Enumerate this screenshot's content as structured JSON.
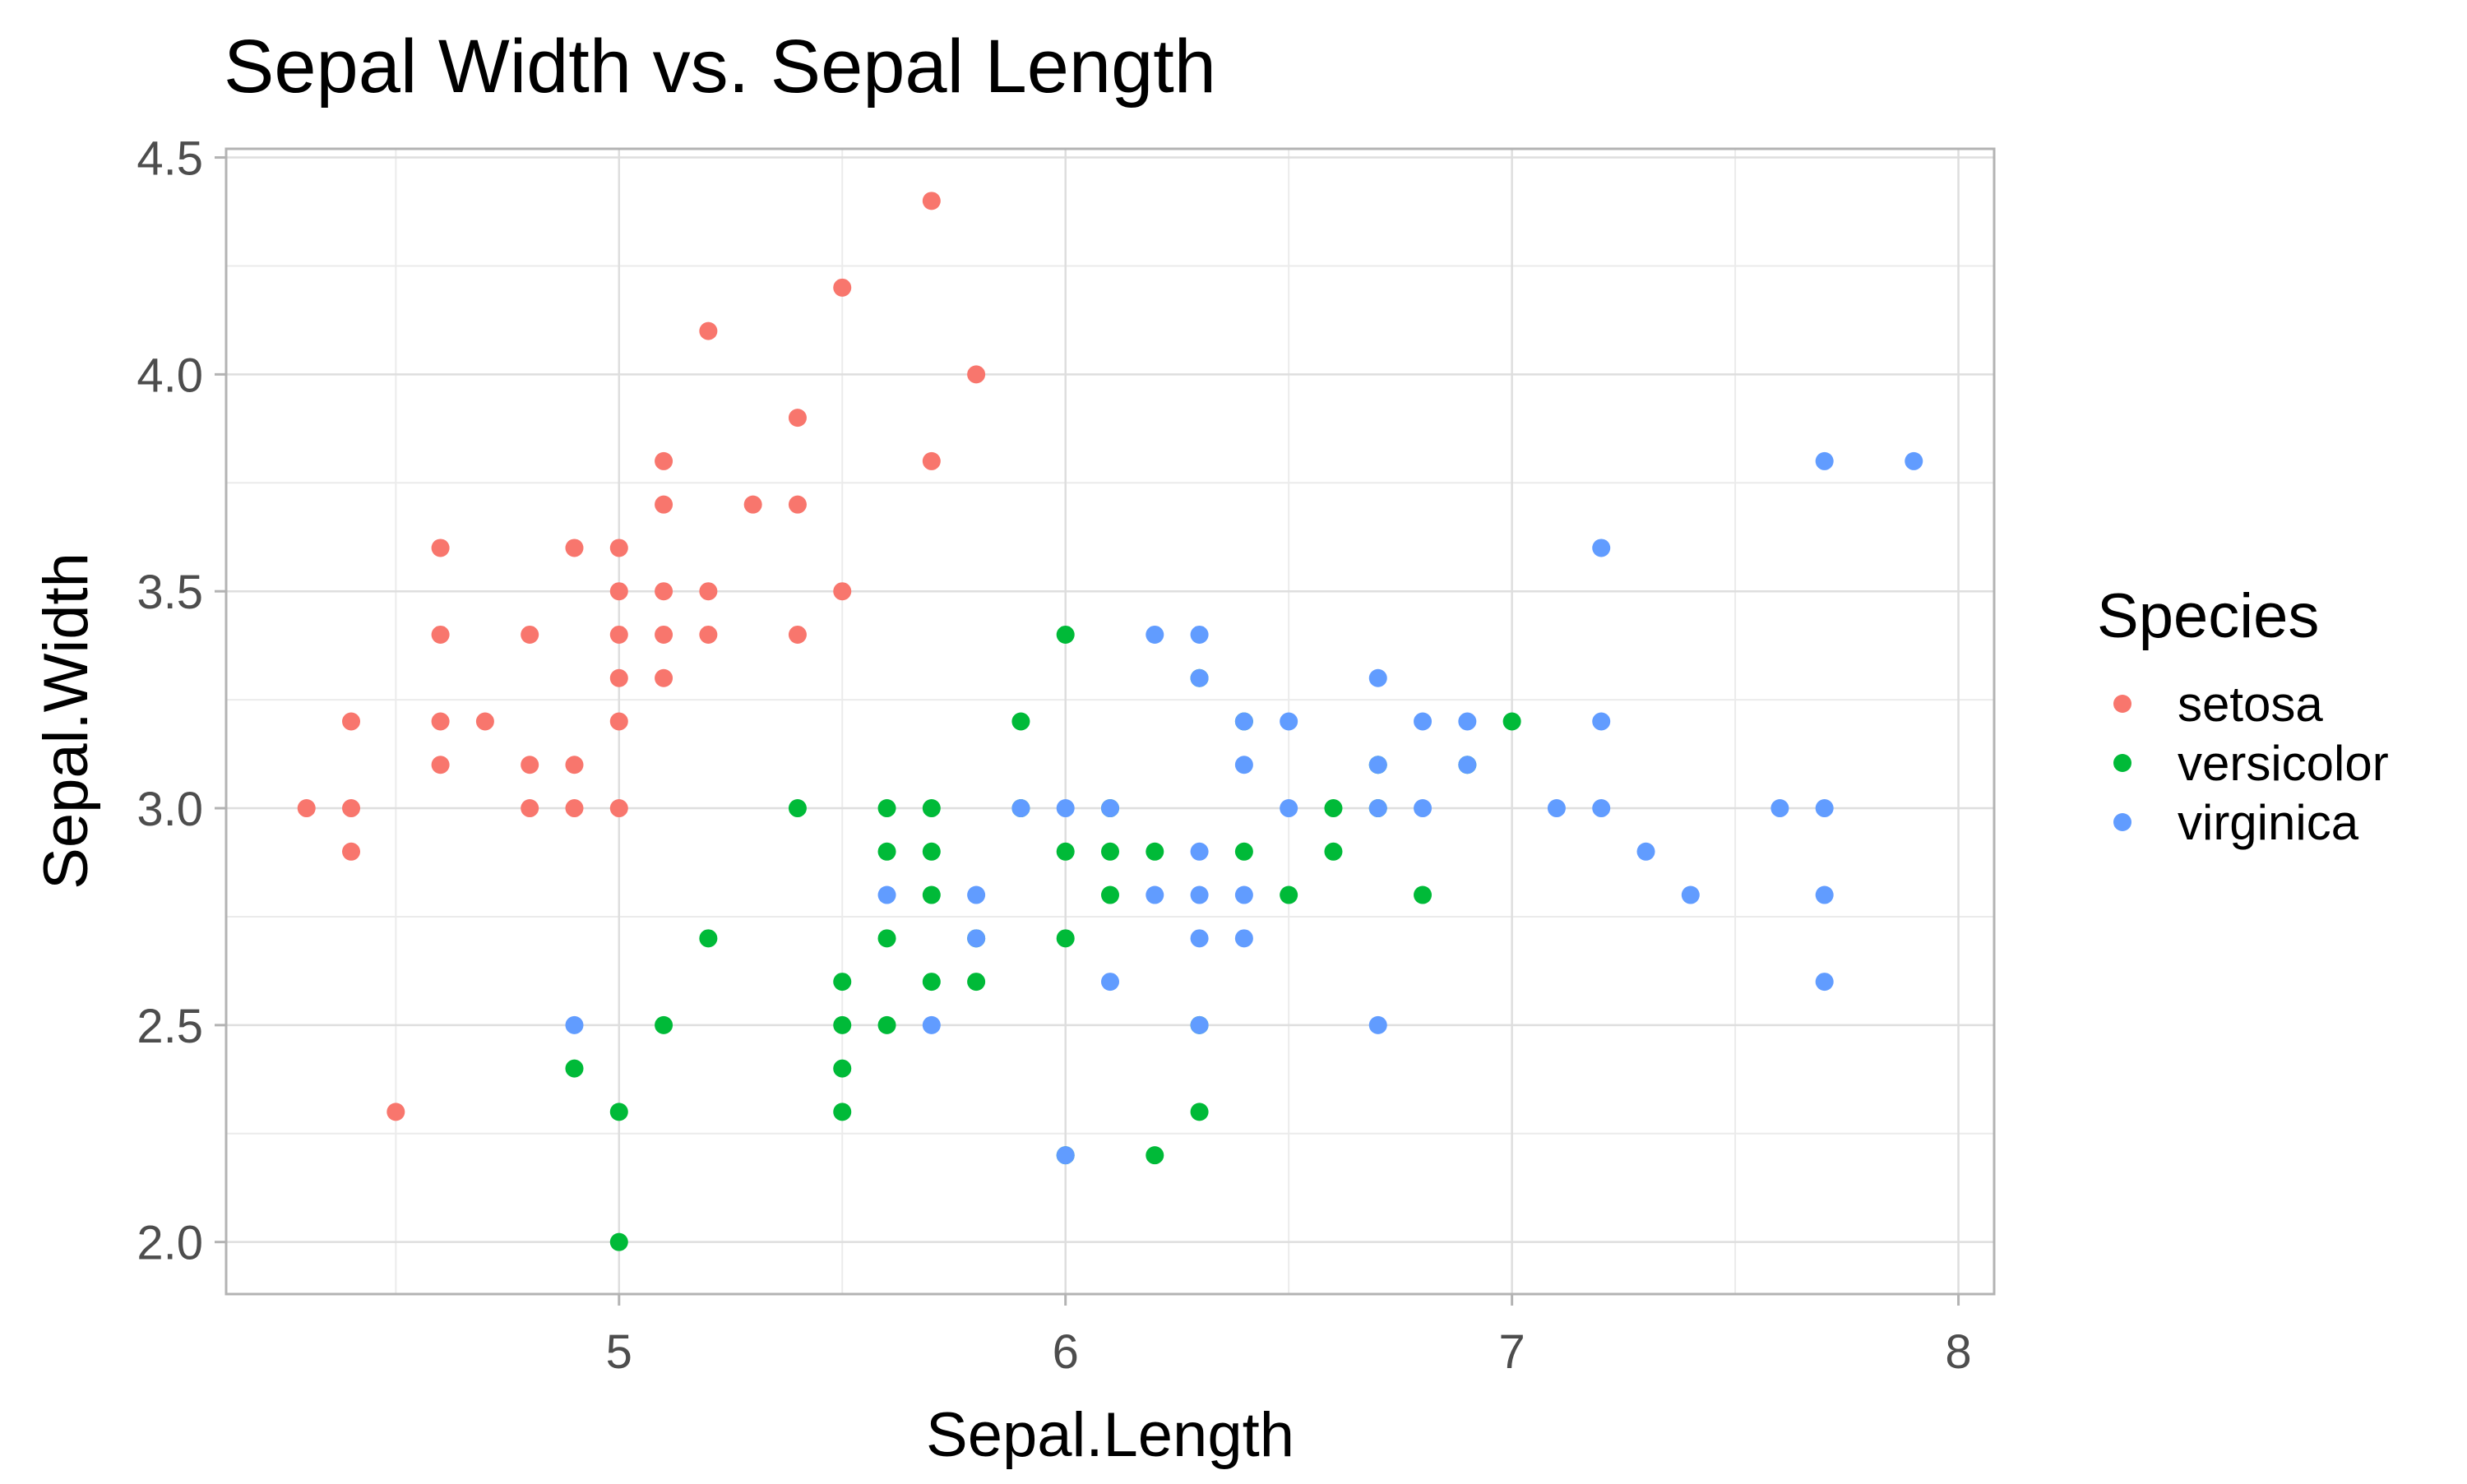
{
  "chart_data": {
    "type": "scatter",
    "title": "Sepal Width vs. Sepal Length",
    "xlabel": "Sepal.Length",
    "ylabel": "Sepal.Width",
    "xlim": [
      4.12,
      8.08
    ],
    "ylim": [
      1.88,
      4.52
    ],
    "x_ticks": [
      5,
      6,
      7,
      8
    ],
    "x_tick_labels": [
      "5",
      "6",
      "7",
      "8"
    ],
    "y_ticks": [
      2.0,
      2.5,
      3.0,
      3.5,
      4.0,
      4.5
    ],
    "y_tick_labels": [
      "2.0",
      "2.5",
      "3.0",
      "3.5",
      "4.0",
      "4.5"
    ],
    "grid": true,
    "legend": {
      "title": "Species",
      "position": "right"
    },
    "series": [
      {
        "name": "setosa",
        "color": "#F8766D",
        "points": [
          [
            4.3,
            3.0
          ],
          [
            4.4,
            2.9
          ],
          [
            4.4,
            3.0
          ],
          [
            4.4,
            3.2
          ],
          [
            4.5,
            2.3
          ],
          [
            4.6,
            3.1
          ],
          [
            4.6,
            3.2
          ],
          [
            4.6,
            3.4
          ],
          [
            4.6,
            3.6
          ],
          [
            4.7,
            3.2
          ],
          [
            4.8,
            3.0
          ],
          [
            4.8,
            3.1
          ],
          [
            4.8,
            3.4
          ],
          [
            4.9,
            3.0
          ],
          [
            4.9,
            3.1
          ],
          [
            4.9,
            3.6
          ],
          [
            5.0,
            3.0
          ],
          [
            5.0,
            3.2
          ],
          [
            5.0,
            3.3
          ],
          [
            5.0,
            3.4
          ],
          [
            5.0,
            3.5
          ],
          [
            5.0,
            3.6
          ],
          [
            5.1,
            3.3
          ],
          [
            5.1,
            3.4
          ],
          [
            5.1,
            3.5
          ],
          [
            5.1,
            3.7
          ],
          [
            5.1,
            3.8
          ],
          [
            5.2,
            3.4
          ],
          [
            5.2,
            3.5
          ],
          [
            5.2,
            4.1
          ],
          [
            5.3,
            3.7
          ],
          [
            5.4,
            3.4
          ],
          [
            5.4,
            3.7
          ],
          [
            5.4,
            3.9
          ],
          [
            5.5,
            3.5
          ],
          [
            5.5,
            4.2
          ],
          [
            5.7,
            3.8
          ],
          [
            5.7,
            4.4
          ],
          [
            5.8,
            4.0
          ]
        ]
      },
      {
        "name": "versicolor",
        "color": "#00BA38",
        "points": [
          [
            4.9,
            2.4
          ],
          [
            5.0,
            2.0
          ],
          [
            5.0,
            2.3
          ],
          [
            5.1,
            2.5
          ],
          [
            5.2,
            2.7
          ],
          [
            5.4,
            3.0
          ],
          [
            5.5,
            2.3
          ],
          [
            5.5,
            2.4
          ],
          [
            5.5,
            2.5
          ],
          [
            5.5,
            2.6
          ],
          [
            5.6,
            2.5
          ],
          [
            5.6,
            2.7
          ],
          [
            5.6,
            2.9
          ],
          [
            5.6,
            3.0
          ],
          [
            5.7,
            2.6
          ],
          [
            5.7,
            2.8
          ],
          [
            5.7,
            2.9
          ],
          [
            5.7,
            3.0
          ],
          [
            5.8,
            2.6
          ],
          [
            5.8,
            2.7
          ],
          [
            5.9,
            3.0
          ],
          [
            5.9,
            3.2
          ],
          [
            6.0,
            2.2
          ],
          [
            6.0,
            2.7
          ],
          [
            6.0,
            2.9
          ],
          [
            6.0,
            3.4
          ],
          [
            6.1,
            2.8
          ],
          [
            6.1,
            2.9
          ],
          [
            6.1,
            3.0
          ],
          [
            6.2,
            2.2
          ],
          [
            6.2,
            2.9
          ],
          [
            6.3,
            2.3
          ],
          [
            6.3,
            2.5
          ],
          [
            6.3,
            3.3
          ],
          [
            6.4,
            2.9
          ],
          [
            6.4,
            3.2
          ],
          [
            6.5,
            2.8
          ],
          [
            6.6,
            2.9
          ],
          [
            6.6,
            3.0
          ],
          [
            6.7,
            3.0
          ],
          [
            6.7,
            3.1
          ],
          [
            6.8,
            2.8
          ],
          [
            6.9,
            3.1
          ],
          [
            7.0,
            3.2
          ]
        ]
      },
      {
        "name": "virginica",
        "color": "#619CFF",
        "points": [
          [
            4.9,
            2.5
          ],
          [
            5.6,
            2.8
          ],
          [
            5.7,
            2.5
          ],
          [
            5.8,
            2.7
          ],
          [
            5.8,
            2.8
          ],
          [
            5.9,
            3.0
          ],
          [
            6.0,
            2.2
          ],
          [
            6.0,
            3.0
          ],
          [
            6.1,
            2.6
          ],
          [
            6.1,
            3.0
          ],
          [
            6.2,
            2.8
          ],
          [
            6.2,
            3.4
          ],
          [
            6.3,
            2.5
          ],
          [
            6.3,
            2.7
          ],
          [
            6.3,
            2.8
          ],
          [
            6.3,
            2.9
          ],
          [
            6.3,
            3.3
          ],
          [
            6.3,
            3.4
          ],
          [
            6.4,
            2.7
          ],
          [
            6.4,
            2.8
          ],
          [
            6.4,
            3.1
          ],
          [
            6.4,
            3.2
          ],
          [
            6.5,
            3.0
          ],
          [
            6.5,
            3.2
          ],
          [
            6.7,
            2.5
          ],
          [
            6.7,
            3.0
          ],
          [
            6.7,
            3.1
          ],
          [
            6.7,
            3.3
          ],
          [
            6.8,
            3.0
          ],
          [
            6.8,
            3.2
          ],
          [
            6.9,
            3.1
          ],
          [
            6.9,
            3.2
          ],
          [
            7.1,
            3.0
          ],
          [
            7.2,
            3.0
          ],
          [
            7.2,
            3.2
          ],
          [
            7.2,
            3.6
          ],
          [
            7.3,
            2.9
          ],
          [
            7.4,
            2.8
          ],
          [
            7.6,
            3.0
          ],
          [
            7.7,
            2.6
          ],
          [
            7.7,
            2.8
          ],
          [
            7.7,
            3.0
          ],
          [
            7.7,
            3.8
          ],
          [
            7.9,
            3.8
          ]
        ]
      }
    ]
  }
}
